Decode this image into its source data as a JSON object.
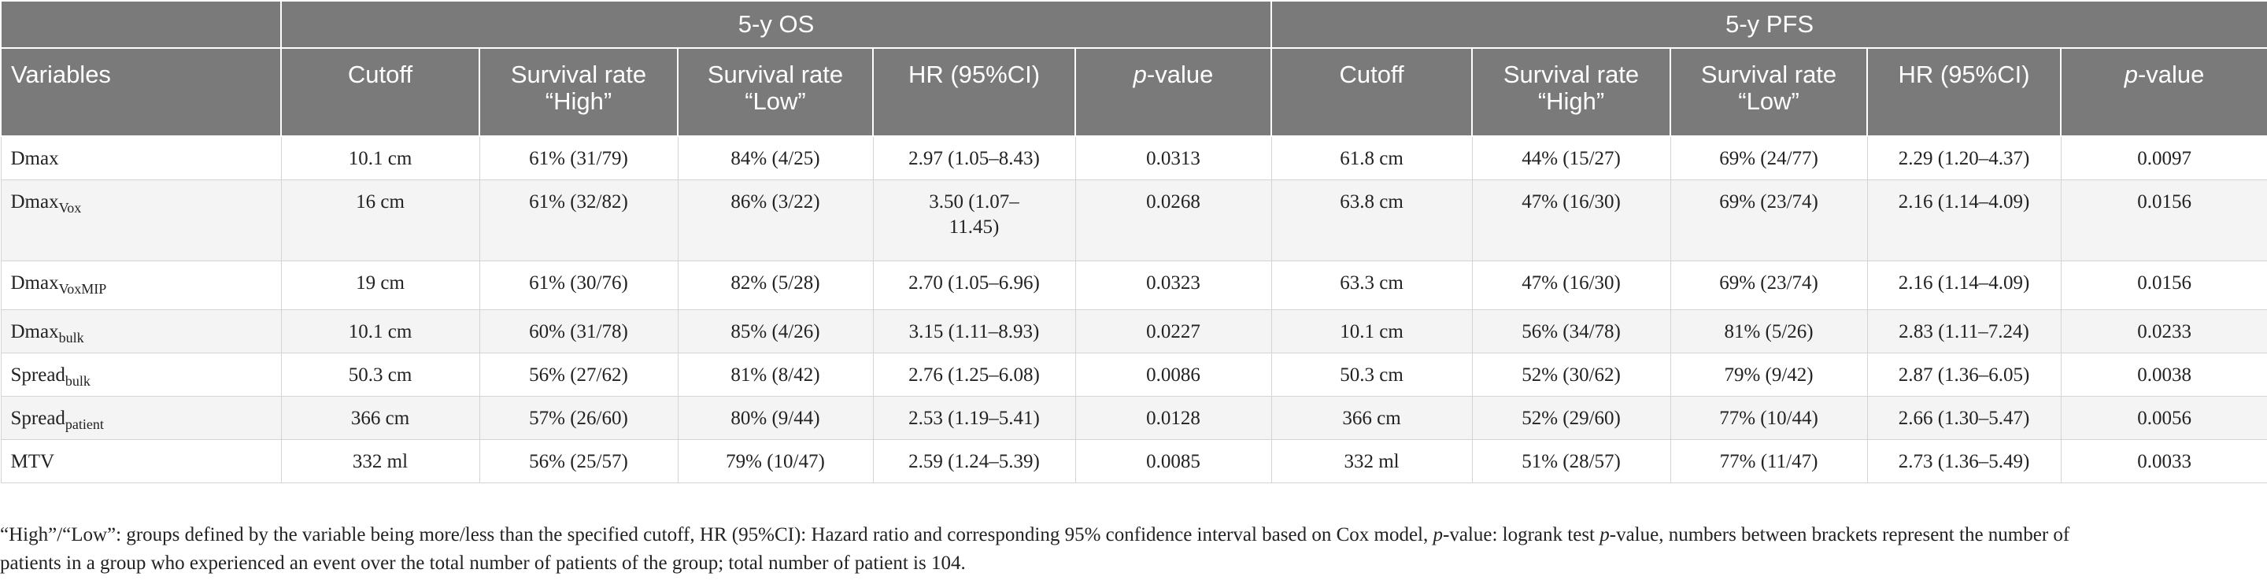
{
  "header": {
    "group_os": "5-y OS",
    "group_pfs": "5-y PFS",
    "variables": "Variables",
    "cutoff": "Cutoff",
    "survival_high": "Survival rate “High”",
    "survival_low": "Survival rate “Low”",
    "hr": "HR (95%CI)",
    "p_italic": "p",
    "p_rest": "-value"
  },
  "rows": [
    {
      "var": "Dmax",
      "sub": "",
      "os": [
        "10.1 cm",
        "61% (31/79)",
        "84% (4/25)",
        "2.97 (1.05–8.43)",
        "0.0313"
      ],
      "pfs": [
        "61.8 cm",
        "44% (15/27)",
        "69% (24/77)",
        "2.29 (1.20–4.37)",
        "0.0097"
      ]
    },
    {
      "var": "Dmax",
      "sub": "Vox",
      "os": [
        "16 cm",
        "61% (32/82)",
        "86% (3/22)",
        "3.50 (1.07–11.45)",
        "0.0268"
      ],
      "pfs": [
        "63.8 cm",
        "47% (16/30)",
        "69% (23/74)",
        "2.16 (1.14–4.09)",
        "0.0156"
      ]
    },
    {
      "var": "Dmax",
      "sub": "VoxMIP",
      "os": [
        "19 cm",
        "61% (30/76)",
        "82% (5/28)",
        "2.70 (1.05–6.96)",
        "0.0323"
      ],
      "pfs": [
        "63.3 cm",
        "47% (16/30)",
        "69% (23/74)",
        "2.16 (1.14–4.09)",
        "0.0156"
      ]
    },
    {
      "var": "Dmax",
      "sub": "bulk",
      "os": [
        "10.1 cm",
        "60% (31/78)",
        "85% (4/26)",
        "3.15 (1.11–8.93)",
        "0.0227"
      ],
      "pfs": [
        "10.1 cm",
        "56% (34/78)",
        "81% (5/26)",
        "2.83 (1.11–7.24)",
        "0.0233"
      ]
    },
    {
      "var": "Spread",
      "sub": "bulk",
      "os": [
        "50.3 cm",
        "56% (27/62)",
        "81% (8/42)",
        "2.76 (1.25–6.08)",
        "0.0086"
      ],
      "pfs": [
        "50.3 cm",
        "52% (30/62)",
        "79% (9/42)",
        "2.87 (1.36–6.05)",
        "0.0038"
      ]
    },
    {
      "var": "Spread",
      "sub": "patient",
      "os": [
        "366 cm",
        "57% (26/60)",
        "80% (9/44)",
        "2.53 (1.19–5.41)",
        "0.0128"
      ],
      "pfs": [
        "366 cm",
        "52% (29/60)",
        "77% (10/44)",
        "2.66 (1.30–5.47)",
        "0.0056"
      ]
    },
    {
      "var": "MTV",
      "sub": "",
      "os": [
        "332 ml",
        "56% (25/57)",
        "79% (10/47)",
        "2.59 (1.24–5.39)",
        "0.0085"
      ],
      "pfs": [
        "332 ml",
        "51% (28/57)",
        "77% (11/47)",
        "2.73 (1.36–5.49)",
        "0.0033"
      ]
    }
  ],
  "footnote": {
    "line1_a": "“High”/“Low”: groups defined by the variable being more/less than the specified cutoff, HR (95%CI): Hazard ratio and corresponding 95% confidence interval based on Cox model, ",
    "p1": "p",
    "line1_b": "-value: logrank test ",
    "p2": "p",
    "line1_c": "-value, numbers between brackets represent the number of",
    "line2": "patients in a group who experienced an event over the total number of patients of the group; total number of patient is 104."
  }
}
